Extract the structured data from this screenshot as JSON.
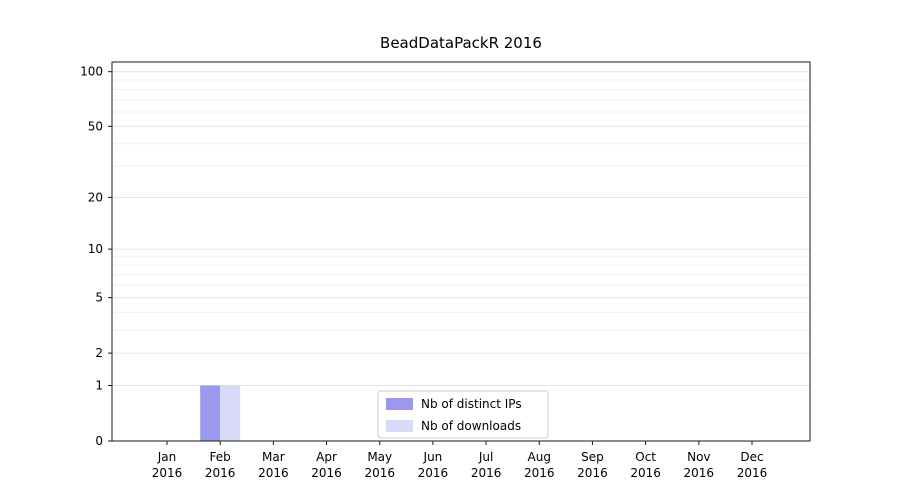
{
  "chart_data": {
    "type": "bar",
    "title": "BeadDataPackR 2016",
    "categories": [
      "Jan 2016",
      "Feb 2016",
      "Mar 2016",
      "Apr 2016",
      "May 2016",
      "Jun 2016",
      "Jul 2016",
      "Aug 2016",
      "Sep 2016",
      "Oct 2016",
      "Nov 2016",
      "Dec 2016"
    ],
    "series": [
      {
        "name": "Nb of distinct IPs",
        "color": "#9999ee",
        "values": [
          0,
          1,
          0,
          0,
          0,
          0,
          0,
          0,
          0,
          0,
          0,
          0
        ]
      },
      {
        "name": "Nb of downloads",
        "color": "#d9d9f8",
        "values": [
          0,
          1,
          0,
          0,
          0,
          0,
          0,
          0,
          0,
          0,
          0,
          0
        ]
      }
    ],
    "yscale": "log1p",
    "ylim": [
      0,
      113
    ],
    "yticks": [
      0,
      1,
      2,
      5,
      10,
      20,
      50,
      100
    ],
    "yticks_minor": [
      3,
      4,
      6,
      7,
      8,
      9,
      30,
      40,
      60,
      70,
      80,
      90
    ],
    "grid": true,
    "legend_position": "lower center inside",
    "xlabel": "",
    "ylabel": ""
  }
}
